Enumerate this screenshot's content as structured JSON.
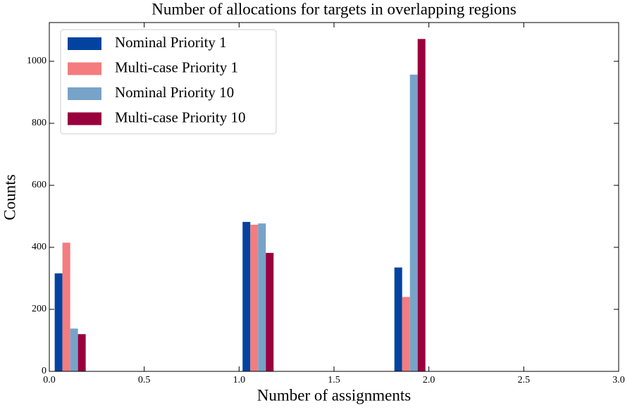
{
  "chart_data": {
    "type": "bar",
    "title": "Number of allocations for targets in overlapping regions",
    "xlabel": "Number of assignments",
    "ylabel": "Counts",
    "x": [
      0.11,
      1.1,
      1.9
    ],
    "series": [
      {
        "name": "Nominal Priority 1",
        "color": "#0343a0",
        "values": [
          316,
          482,
          335
        ]
      },
      {
        "name": "Multi-case Priority 1",
        "color": "#f47c7e",
        "values": [
          415,
          473,
          240
        ]
      },
      {
        "name": "Nominal Priority 10",
        "color": "#78a3c9",
        "values": [
          138,
          477,
          957
        ]
      },
      {
        "name": "Multi-case Priority 10",
        "color": "#99003d",
        "values": [
          120,
          382,
          1072
        ]
      }
    ],
    "xlim": [
      0,
      3
    ],
    "xticks": [
      {
        "value": 0,
        "label": "0.0"
      },
      0.5,
      {
        "value": 1,
        "label": "1.0"
      },
      1.5,
      {
        "value": 2,
        "label": "2.0"
      },
      2.5,
      {
        "value": 3,
        "label": "3.0"
      }
    ],
    "ylim": [
      0,
      1125
    ],
    "yticks": [
      0,
      200,
      400,
      600,
      800,
      1000
    ],
    "legend": "upper left"
  }
}
